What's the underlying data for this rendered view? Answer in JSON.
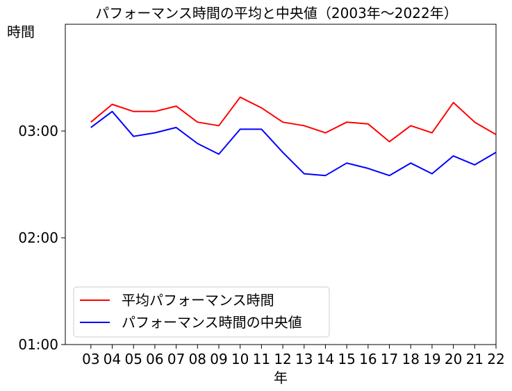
{
  "chart_data": {
    "type": "line",
    "title": "パフォーマンス時間の平均と中央値（2003年〜2022年）",
    "xlabel": "年",
    "ylabel": "時間",
    "categories": [
      "03",
      "04",
      "05",
      "06",
      "07",
      "08",
      "09",
      "10",
      "11",
      "12",
      "13",
      "14",
      "15",
      "16",
      "17",
      "18",
      "19",
      "20",
      "21",
      "22"
    ],
    "yticks": [
      {
        "value": 60,
        "label": "01:00"
      },
      {
        "value": 120,
        "label": "02:00"
      },
      {
        "value": 180,
        "label": "03:00"
      }
    ],
    "ylim": [
      60,
      240
    ],
    "xlim": [
      2001.8,
      2022
    ],
    "legend_position": "lower-left",
    "grid": false,
    "series": [
      {
        "name": "平均パフォーマンス時間",
        "color": "#ff0000",
        "x": [
          2003,
          2004,
          2005,
          2006,
          2007,
          2008,
          2009,
          2010,
          2011,
          2012,
          2013,
          2014,
          2015,
          2016,
          2017,
          2018,
          2019,
          2020,
          2021,
          2022
        ],
        "values": [
          185,
          195,
          191,
          191,
          194,
          185,
          183,
          199,
          193,
          185,
          183,
          179,
          185,
          184,
          174,
          183,
          179,
          196,
          185,
          178
        ]
      },
      {
        "name": "パフォーマンス時間の中央値",
        "color": "#0000ff",
        "x": [
          2003,
          2004,
          2005,
          2006,
          2007,
          2008,
          2009,
          2010,
          2011,
          2012,
          2013,
          2014,
          2015,
          2016,
          2017,
          2018,
          2019,
          2020,
          2021,
          2022
        ],
        "values": [
          182,
          191,
          177,
          179,
          182,
          173,
          167,
          181,
          181,
          168,
          156,
          155,
          162,
          159,
          155,
          162,
          156,
          166,
          161,
          168
        ]
      }
    ]
  }
}
